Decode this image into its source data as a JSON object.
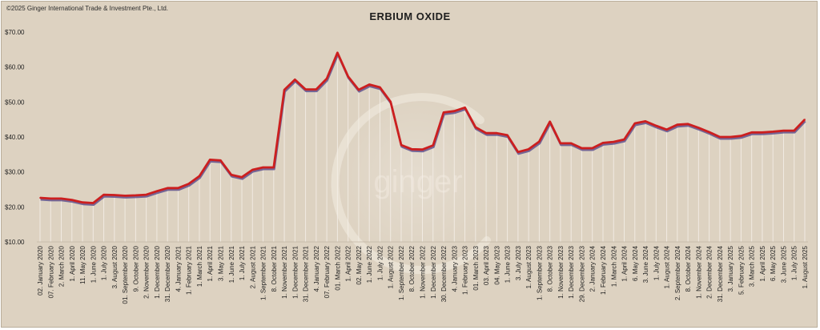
{
  "copyright": "©2025 Ginger International Trade & Investment Pte., Ltd.",
  "watermark": "ginger",
  "chart_data": {
    "type": "line",
    "title": "ERBIUM OXIDE",
    "xlabel": "",
    "ylabel": "",
    "ylim": [
      10,
      70
    ],
    "y_ticks": [
      "$10.00",
      "$20.00",
      "$30.00",
      "$40.00",
      "$50.00",
      "$60.00",
      "$70.00"
    ],
    "y_tick_values": [
      10,
      20,
      30,
      40,
      50,
      60,
      70
    ],
    "grid": "vertical drop lines at data points",
    "line_color": "#cc1f1f",
    "shadow_color": "#5a4a8a",
    "background_color": "#ddd2c1",
    "series": [
      {
        "values": [
          22.6,
          22.4,
          22.4,
          22.0,
          21.3,
          21.1,
          23.5,
          23.4,
          23.2,
          23.3,
          23.5,
          24.5,
          25.4,
          25.4,
          26.6,
          28.8,
          33.5,
          33.3,
          29.2,
          28.5,
          30.6,
          31.3,
          31.3,
          53.5,
          56.4,
          53.6,
          53.6,
          56.7,
          64.1,
          57.3,
          53.5,
          55.0,
          54.2,
          50.1,
          37.7,
          36.5,
          36.4,
          37.6,
          47.0,
          47.4,
          48.4,
          42.8,
          41.1,
          41.1,
          40.5,
          35.7,
          36.5,
          38.7,
          44.4,
          38.2,
          38.2,
          36.8,
          36.8,
          38.3,
          38.6,
          39.3,
          43.9,
          44.5,
          43.2,
          42.1,
          43.5,
          43.7,
          42.6,
          41.4,
          40.0,
          40.0,
          40.3,
          41.3,
          41.3,
          41.5,
          41.8,
          41.8,
          45.0
        ]
      }
    ],
    "x_labels": [
      {
        "label": "02. January 2020",
        "pos": 0
      },
      {
        "label": "07. February 2020",
        "pos": 1
      },
      {
        "label": "2. March 2020",
        "pos": 2
      },
      {
        "label": "1. April 2020",
        "pos": 3
      },
      {
        "label": "11. May 2020",
        "pos": 4
      },
      {
        "label": "1. June 2020",
        "pos": 5
      },
      {
        "label": "1. July 2020",
        "pos": 6
      },
      {
        "label": "3. August 2020",
        "pos": 7
      },
      {
        "label": "01. September 2020",
        "pos": 8
      },
      {
        "label": "9. October 2020",
        "pos": 9
      },
      {
        "label": "2. November 2020",
        "pos": 10
      },
      {
        "label": "1. December 2020",
        "pos": 11
      },
      {
        "label": "31. December 2020",
        "pos": 12
      },
      {
        "label": "4. January 2021",
        "pos": 13
      },
      {
        "label": "1. February 2021",
        "pos": 14
      },
      {
        "label": "1. March 2021",
        "pos": 15
      },
      {
        "label": "1. April 2021",
        "pos": 16
      },
      {
        "label": "3. May 2021",
        "pos": 17
      },
      {
        "label": "1. June 2021",
        "pos": 18
      },
      {
        "label": "1. July 2021",
        "pos": 19
      },
      {
        "label": "2. August 2021",
        "pos": 20
      },
      {
        "label": "1. September 2021",
        "pos": 21
      },
      {
        "label": "8. October 2021",
        "pos": 22
      },
      {
        "label": "1. November 2021",
        "pos": 23
      },
      {
        "label": "1. December 2021",
        "pos": 24
      },
      {
        "label": "31. December 2021",
        "pos": 25
      },
      {
        "label": "4. January 2022",
        "pos": 26
      },
      {
        "label": "07. February 2022",
        "pos": 27
      },
      {
        "label": "01. March 2022",
        "pos": 28
      },
      {
        "label": "1. April 2022",
        "pos": 29
      },
      {
        "label": "02. May 2022",
        "pos": 30
      },
      {
        "label": "1. June 2022",
        "pos": 31
      },
      {
        "label": "1. July 2022",
        "pos": 32
      },
      {
        "label": "1. August 2022",
        "pos": 33
      },
      {
        "label": "1. September 2022",
        "pos": 34
      },
      {
        "label": "8. October 2022",
        "pos": 35
      },
      {
        "label": "1. November 2022",
        "pos": 36
      },
      {
        "label": "1. December 2022",
        "pos": 37
      },
      {
        "label": "30. December 2022",
        "pos": 38
      },
      {
        "label": "4. January 2023",
        "pos": 39
      },
      {
        "label": "1. February 2023",
        "pos": 40
      },
      {
        "label": "01. March 2023",
        "pos": 41
      },
      {
        "label": "03. April 2023",
        "pos": 42
      },
      {
        "label": "04. May 2023",
        "pos": 43
      },
      {
        "label": "1. June 2023",
        "pos": 44
      },
      {
        "label": "3. July 2023",
        "pos": 45
      },
      {
        "label": "1. August 2023",
        "pos": 46
      },
      {
        "label": "1. September 2023",
        "pos": 47
      },
      {
        "label": "8. October 2023",
        "pos": 48
      },
      {
        "label": "1. November 2023",
        "pos": 49
      },
      {
        "label": "1. December 2023",
        "pos": 50
      },
      {
        "label": "29. December 2023",
        "pos": 51
      },
      {
        "label": "2. January 2024",
        "pos": 52
      },
      {
        "label": "1. February 2024",
        "pos": 53
      },
      {
        "label": "1. March 2024",
        "pos": 54
      },
      {
        "label": "1. April 2024",
        "pos": 55
      },
      {
        "label": "6. May 2024",
        "pos": 56
      },
      {
        "label": "3. June 2024",
        "pos": 57
      },
      {
        "label": "1. July 2024",
        "pos": 58
      },
      {
        "label": "1. August 2024",
        "pos": 59
      },
      {
        "label": "2. September 2024",
        "pos": 60
      },
      {
        "label": "8. October 2024",
        "pos": 61
      },
      {
        "label": "1. November 2024",
        "pos": 62
      },
      {
        "label": "2. December 2024",
        "pos": 63
      },
      {
        "label": "31. December 2024",
        "pos": 64
      },
      {
        "label": "3. January 2025",
        "pos": 65
      },
      {
        "label": "5. February 2025",
        "pos": 66
      },
      {
        "label": "3. March 2025",
        "pos": 67
      },
      {
        "label": "1. April 2025",
        "pos": 68
      },
      {
        "label": "6. May 2025",
        "pos": 69
      },
      {
        "label": "3. June 2025",
        "pos": 70
      },
      {
        "label": "1. July 2025",
        "pos": 71
      },
      {
        "label": "1. August 2025",
        "pos": 72
      }
    ]
  }
}
